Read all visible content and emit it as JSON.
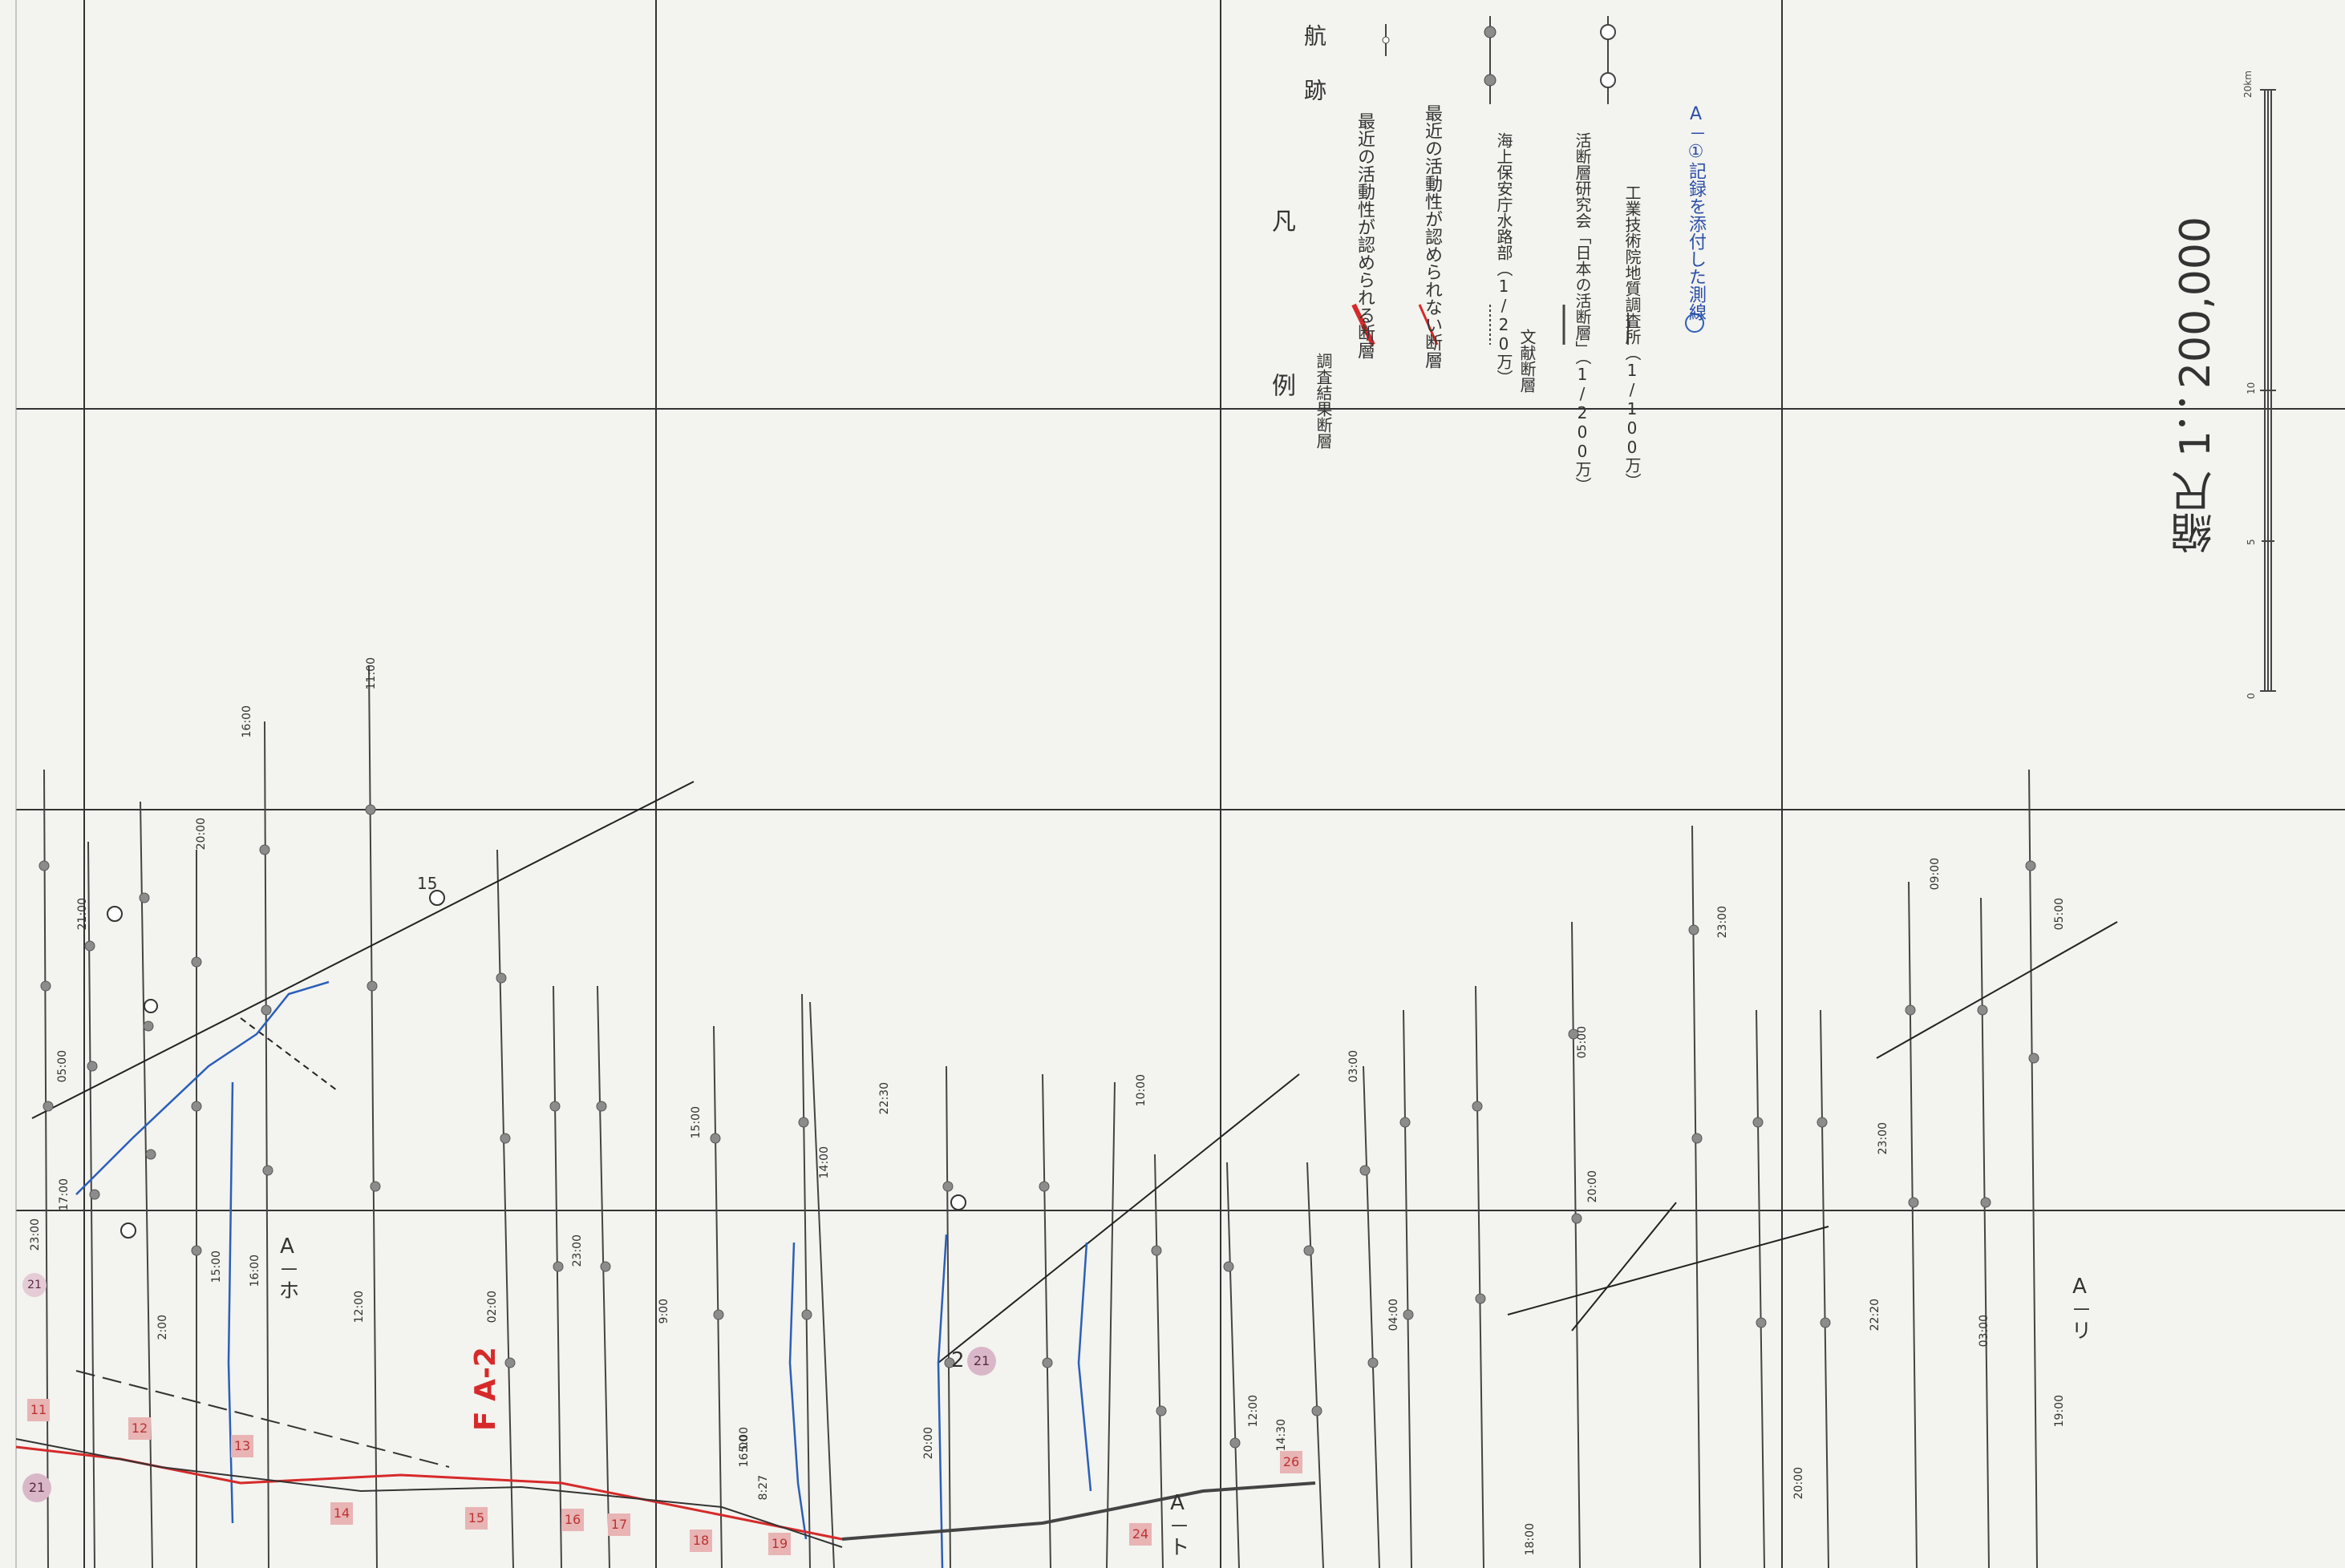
{
  "legend": {
    "title": "凡 例",
    "survey_group_label": "調査結果断層",
    "active_fault_label": "最近の活動性が認められる断層",
    "inactive_fault_label": "最近の活動性が認められない断層",
    "literature_group_label": "文献断層",
    "coast_guard_label": "海上保安庁水路部（1/20万）",
    "rg_label": "活断層研究会「日本の活断層」（1/200万）",
    "gsj_label": "工業技術院地質調査所（1/100万）",
    "track_label": "航跡",
    "record_label": "A－①記録を添付した測線",
    "colors": {
      "active": "#d62a2a",
      "inactive": "#d62a2a",
      "track": "#222222",
      "record": "#2b5fb8"
    }
  },
  "scale": {
    "title": "縮尺 1：200,000",
    "bar_ticks": [
      "0",
      "5",
      "10",
      "20km"
    ]
  },
  "map": {
    "fault_label": "F A-2",
    "survey_lines": [
      "A－ホ",
      "A－ト",
      "A－リ"
    ],
    "station_numbers": [
      "11",
      "12",
      "13",
      "14",
      "15",
      "16",
      "17",
      "18",
      "19",
      "24",
      "26"
    ],
    "route_badges": [
      "21",
      "21",
      "21"
    ],
    "circled_numbers": [
      "15",
      "2"
    ],
    "time_labels": [
      "16:00",
      "11:00",
      "20:00",
      "21:00",
      "05:00",
      "17:00",
      "23:00",
      "16:00",
      "2:00",
      "15:00",
      "12:00",
      "02:00",
      "23:00",
      "9:00",
      "5:00",
      "16:00",
      "8:27",
      "15:00",
      "14:00",
      "22:30",
      "20:00",
      "10:00",
      "14:30",
      "12:00",
      "03:00",
      "04:00",
      "05:00",
      "20:00",
      "23:00",
      "09:00",
      "05:00",
      "23:00",
      "22:20",
      "03:00",
      "19:00",
      "20:00",
      "18:00"
    ]
  }
}
